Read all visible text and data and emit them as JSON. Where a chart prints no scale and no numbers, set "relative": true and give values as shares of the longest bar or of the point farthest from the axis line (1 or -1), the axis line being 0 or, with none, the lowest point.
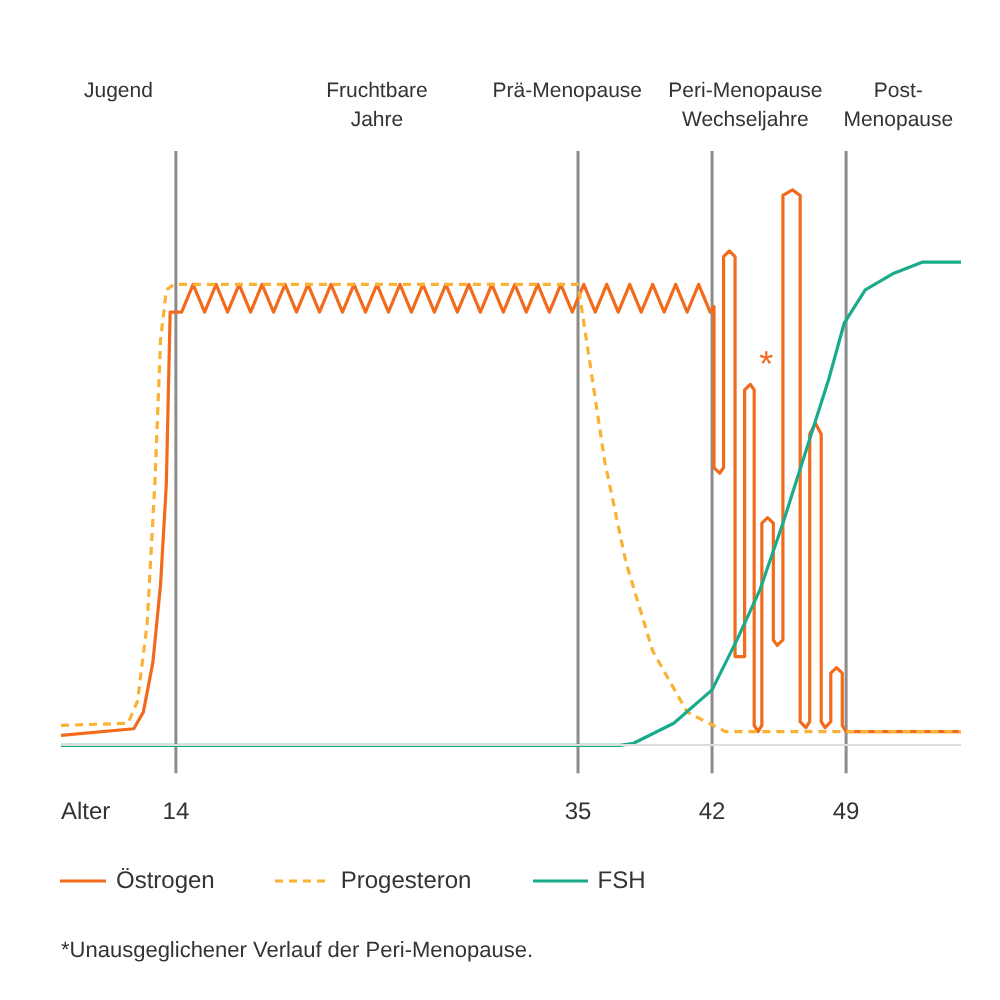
{
  "chart_data": {
    "type": "line",
    "relative": true,
    "xlabel": "Alter",
    "xlim": [
      8,
      55
    ],
    "xticks": [
      14,
      35,
      42,
      49
    ],
    "ref_lines": [
      {
        "axis": "x",
        "value": 14,
        "color": "#8c8c8c"
      },
      {
        "axis": "x",
        "value": 35,
        "color": "#8c8c8c"
      },
      {
        "axis": "x",
        "value": 42,
        "color": "#8c8c8c"
      },
      {
        "axis": "x",
        "value": 49,
        "color": "#8c8c8c"
      }
    ],
    "annotations": [
      "Jugend",
      "Fruchtbare\nJahre",
      "Prä-Menopause",
      "Peri-Menopause\nWechseljahre",
      "Post-\nMenopause",
      {
        "text": "*",
        "x": 44.2,
        "y": 0.65
      },
      "*Unausgeglichener Verlauf der Peri-Menopause."
    ],
    "grid": false,
    "legend": "bottom",
    "marker": "none",
    "series": [
      {
        "name": "Östrogen",
        "color": "#f26b1d",
        "line_style": "solid",
        "x": [
          8,
          11.8,
          12.3,
          12.8,
          13.2,
          13.5,
          13.7,
          14.3,
          14.9,
          15.5,
          16.1,
          16.7,
          17.3,
          17.9,
          18.5,
          19.1,
          19.7,
          20.3,
          20.9,
          21.5,
          22.1,
          22.7,
          23.3,
          23.9,
          24.5,
          25.1,
          25.7,
          26.3,
          26.9,
          27.5,
          28.1,
          28.7,
          29.3,
          29.9,
          30.5,
          31.1,
          31.7,
          32.3,
          32.9,
          33.5,
          34.1,
          34.7,
          35.3,
          35.9,
          36.5,
          37.1,
          37.7,
          38.3,
          38.9,
          39.5,
          40.1,
          40.7,
          41.3,
          41.9,
          42.1,
          42.1,
          42.4,
          42.6,
          42.6,
          42.9,
          43.2,
          43.2,
          43.5,
          43.7,
          43.7,
          44.0,
          44.2,
          44.2,
          44.4,
          44.6,
          44.6,
          44.9,
          45.2,
          45.2,
          45.4,
          45.7,
          45.7,
          46.2,
          46.6,
          46.6,
          46.9,
          47.1,
          47.1,
          47.4,
          47.7,
          47.7,
          47.9,
          48.2,
          48.2,
          48.5,
          48.8,
          48.8,
          49.0,
          55
        ],
        "values": [
          0.018,
          0.03,
          0.06,
          0.15,
          0.29,
          0.47,
          0.78,
          0.78,
          0.83,
          0.78,
          0.83,
          0.78,
          0.83,
          0.78,
          0.83,
          0.78,
          0.83,
          0.78,
          0.83,
          0.78,
          0.83,
          0.78,
          0.83,
          0.78,
          0.83,
          0.78,
          0.83,
          0.78,
          0.83,
          0.78,
          0.83,
          0.78,
          0.83,
          0.78,
          0.83,
          0.78,
          0.83,
          0.78,
          0.83,
          0.78,
          0.83,
          0.78,
          0.83,
          0.78,
          0.83,
          0.78,
          0.83,
          0.78,
          0.83,
          0.78,
          0.83,
          0.78,
          0.83,
          0.78,
          0.79,
          0.5,
          0.49,
          0.5,
          0.88,
          0.89,
          0.88,
          0.16,
          0.16,
          0.16,
          0.64,
          0.65,
          0.64,
          0.036,
          0.025,
          0.036,
          0.4,
          0.41,
          0.4,
          0.19,
          0.18,
          0.19,
          0.99,
          1,
          0.99,
          0.043,
          0.032,
          0.043,
          0.56,
          0.58,
          0.56,
          0.043,
          0.032,
          0.043,
          0.13,
          0.14,
          0.13,
          0.036,
          0.025,
          0.025
        ]
      },
      {
        "name": "Progesteron",
        "color": "#f9b234",
        "line_style": "dashed",
        "x": [
          8,
          11.5,
          12,
          12.5,
          12.9,
          13.2,
          13.5,
          13.9,
          35,
          35.7,
          36.4,
          37.5,
          38.9,
          40.7,
          42.7,
          55
        ],
        "values": [
          0.036,
          0.04,
          0.08,
          0.22,
          0.47,
          0.73,
          0.82,
          0.83,
          0.83,
          0.67,
          0.51,
          0.33,
          0.17,
          0.06,
          0.025,
          0.025
        ]
      },
      {
        "name": "FSH",
        "color": "#1aab8a",
        "line_style": "solid",
        "x": [
          8,
          37.2,
          37.9,
          40,
          42,
          43.3,
          44.5,
          45.7,
          46.9,
          48.1,
          48.9,
          50,
          51.5,
          53,
          55
        ],
        "values": [
          0,
          0,
          0.004,
          0.04,
          0.1,
          0.19,
          0.28,
          0.4,
          0.53,
          0.66,
          0.76,
          0.82,
          0.85,
          0.87,
          0.87
        ]
      }
    ]
  }
}
